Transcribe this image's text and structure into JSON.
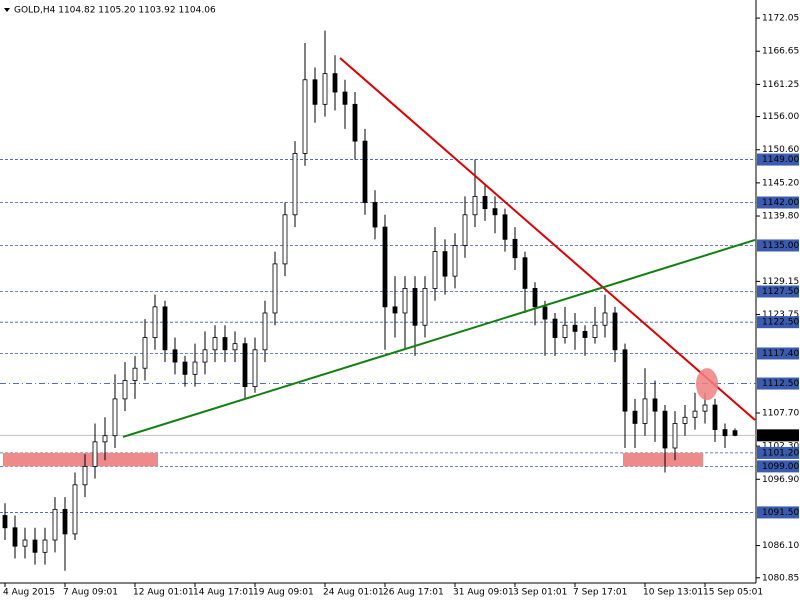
{
  "chart_data": {
    "type": "candlestick",
    "header": "GOLD,H4  1104.82 1105.20 1103.92 1104.06",
    "categories": [
      "4 Aug 2015",
      null,
      null,
      null,
      null,
      null,
      "7 Aug 09:01",
      null,
      null,
      null,
      null,
      null,
      null,
      "12 Aug 01:01",
      null,
      null,
      null,
      null,
      null,
      "14 Aug 17:01",
      null,
      null,
      null,
      null,
      null,
      "19 Aug 09:01",
      null,
      null,
      null,
      null,
      null,
      null,
      "24 Aug 01:01",
      null,
      null,
      null,
      null,
      null,
      "26 Aug 17:01",
      null,
      null,
      null,
      null,
      null,
      null,
      "31 Aug 09:01",
      null,
      null,
      null,
      null,
      null,
      "3 Sep 01:01",
      null,
      null,
      null,
      null,
      null,
      "7 Sep 17:01",
      null,
      null,
      null,
      null,
      null,
      null,
      "10 Sep 13:01",
      null,
      null,
      null,
      null,
      null,
      "15 Sep 05:01",
      null,
      null,
      null
    ],
    "ohlc": [
      [
        1091,
        1093,
        1087,
        1089
      ],
      [
        1089,
        1091,
        1084,
        1086
      ],
      [
        1086,
        1089,
        1084,
        1087
      ],
      [
        1087,
        1089,
        1083,
        1085
      ],
      [
        1085,
        1089,
        1083,
        1087
      ],
      [
        1087,
        1094,
        1085,
        1092
      ],
      [
        1092,
        1094,
        1082,
        1088
      ],
      [
        1088,
        1098,
        1087,
        1096
      ],
      [
        1096,
        1101,
        1094,
        1099
      ],
      [
        1099,
        1106,
        1097,
        1103
      ],
      [
        1103,
        1107,
        1100,
        1104
      ],
      [
        1104,
        1114,
        1102,
        1110
      ],
      [
        1110,
        1116,
        1108,
        1113
      ],
      [
        1113,
        1117,
        1110,
        1115
      ],
      [
        1115,
        1123,
        1113,
        1120
      ],
      [
        1120,
        1127,
        1118,
        1125
      ],
      [
        1125,
        1126,
        1116,
        1118
      ],
      [
        1118,
        1120,
        1114,
        1116
      ],
      [
        1116,
        1117,
        1112,
        1114
      ],
      [
        1114,
        1119,
        1112,
        1116
      ],
      [
        1116,
        1121,
        1114,
        1118
      ],
      [
        1118,
        1122,
        1116,
        1120
      ],
      [
        1120,
        1122,
        1116,
        1118
      ],
      [
        1118,
        1121,
        1116,
        1119
      ],
      [
        1119,
        1120,
        1110,
        1112
      ],
      [
        1112,
        1120,
        1111,
        1118
      ],
      [
        1118,
        1126,
        1116,
        1124
      ],
      [
        1124,
        1134,
        1122,
        1132
      ],
      [
        1132,
        1142,
        1130,
        1140
      ],
      [
        1140,
        1152,
        1138,
        1150
      ],
      [
        1150,
        1168,
        1148,
        1162
      ],
      [
        1162,
        1164,
        1155,
        1158
      ],
      [
        1158,
        1170,
        1156,
        1163
      ],
      [
        1163,
        1166,
        1157,
        1160
      ],
      [
        1160,
        1162,
        1154,
        1158
      ],
      [
        1158,
        1160,
        1149,
        1152
      ],
      [
        1152,
        1154,
        1140,
        1142
      ],
      [
        1142,
        1144,
        1136,
        1138
      ],
      [
        1138,
        1140,
        1118,
        1125
      ],
      [
        1125,
        1130,
        1120,
        1124
      ],
      [
        1124,
        1130,
        1118,
        1128
      ],
      [
        1128,
        1130,
        1117,
        1122
      ],
      [
        1122,
        1130,
        1120,
        1128
      ],
      [
        1128,
        1138,
        1126,
        1134
      ],
      [
        1134,
        1136,
        1127,
        1130
      ],
      [
        1130,
        1137,
        1128,
        1135
      ],
      [
        1135,
        1143,
        1133,
        1140
      ],
      [
        1140,
        1149,
        1138,
        1143
      ],
      [
        1143,
        1145,
        1139,
        1141
      ],
      [
        1141,
        1143,
        1137,
        1140
      ],
      [
        1140,
        1141,
        1134,
        1136
      ],
      [
        1136,
        1138,
        1131,
        1133
      ],
      [
        1133,
        1134,
        1124,
        1128
      ],
      [
        1128,
        1129,
        1122,
        1125
      ],
      [
        1125,
        1126,
        1117,
        1123
      ],
      [
        1123,
        1124,
        1117,
        1120
      ],
      [
        1120,
        1125,
        1119,
        1122
      ],
      [
        1122,
        1124,
        1118,
        1121
      ],
      [
        1121,
        1122,
        1117,
        1120
      ],
      [
        1120,
        1125,
        1119,
        1122
      ],
      [
        1122,
        1127,
        1120,
        1124
      ],
      [
        1124,
        1125,
        1116,
        1118
      ],
      [
        1118,
        1119,
        1102,
        1108
      ],
      [
        1108,
        1110,
        1102,
        1106
      ],
      [
        1106,
        1115,
        1104,
        1110
      ],
      [
        1110,
        1113,
        1103,
        1108
      ],
      [
        1108,
        1109,
        1098,
        1102
      ],
      [
        1102,
        1108,
        1100,
        1106
      ],
      [
        1106,
        1109,
        1104,
        1107
      ],
      [
        1107,
        1111,
        1105,
        1108
      ],
      [
        1108,
        1111,
        1106,
        1109
      ],
      [
        1109,
        1110,
        1103,
        1105
      ],
      [
        1105,
        1106,
        1102,
        1104
      ],
      [
        1104.82,
        1105.2,
        1103.92,
        1104.06
      ]
    ],
    "up_color": "#ffffff",
    "down_color": "#000000",
    "ylim": [
      1080,
      1175
    ],
    "yticks": [
      {
        "value": 1172.05,
        "label": "1172.05"
      },
      {
        "value": 1166.65,
        "label": "1166.65"
      },
      {
        "value": 1161.25,
        "label": "1161.25"
      },
      {
        "value": 1156,
        "label": "1156.00"
      },
      {
        "value": 1150.6,
        "label": "1150.60"
      },
      {
        "value": 1145.2,
        "label": "1145.20"
      },
      {
        "value": 1139.8,
        "label": "1139.80"
      },
      {
        "value": 1129.15,
        "label": "1129.15"
      },
      {
        "value": 1123.75,
        "label": "1123.75"
      },
      {
        "value": 1107.7,
        "label": "1107.70"
      },
      {
        "value": 1102.3,
        "label": "1102.30"
      },
      {
        "value": 1096.9,
        "label": "1096.90"
      },
      {
        "value": 1086.1,
        "label": "1086.10"
      },
      {
        "value": 1080.85,
        "label": "1080.85"
      }
    ],
    "levels": [
      {
        "value": 1149,
        "label": "1149.00",
        "style": "dashed"
      },
      {
        "value": 1142,
        "label": "1142.00",
        "style": "dashed"
      },
      {
        "value": 1135,
        "label": "1135.00",
        "style": "dashed"
      },
      {
        "value": 1127.5,
        "label": "1127.50",
        "style": "dashed"
      },
      {
        "value": 1122.5,
        "label": "1122.50",
        "style": "dashed"
      },
      {
        "value": 1117.4,
        "label": "1117.40",
        "style": "dashed"
      },
      {
        "value": 1112.5,
        "label": "1112.50",
        "style": "dashdot"
      },
      {
        "value": 1101.2,
        "label": "1101.20",
        "style": "dashed"
      },
      {
        "value": 1099,
        "label": "1099.00",
        "style": "dashed"
      },
      {
        "value": 1091.5,
        "label": "1091.50",
        "style": "dashed"
      }
    ],
    "level_color": "#3a5bb0",
    "trendlines": [
      {
        "color": "#e00000",
        "from": [
          33.5,
          1165.55
        ],
        "to": [
          75,
          1106.56
        ]
      },
      {
        "color": "#108010",
        "from": [
          11.8,
          1103.8
        ],
        "to": [
          75,
          1135.9
        ]
      }
    ],
    "zones": [
      {
        "color": "#ee8a8a",
        "from": [
          -0.2,
          1101.2
        ],
        "to": [
          15.3,
          1099
        ]
      },
      {
        "color": "#ee8a8a",
        "from": [
          61.8,
          1101.2
        ],
        "to": [
          69.8,
          1099
        ]
      }
    ],
    "marker": {
      "color": "#f08080",
      "at": [
        70.2,
        1112.4
      ]
    }
  }
}
